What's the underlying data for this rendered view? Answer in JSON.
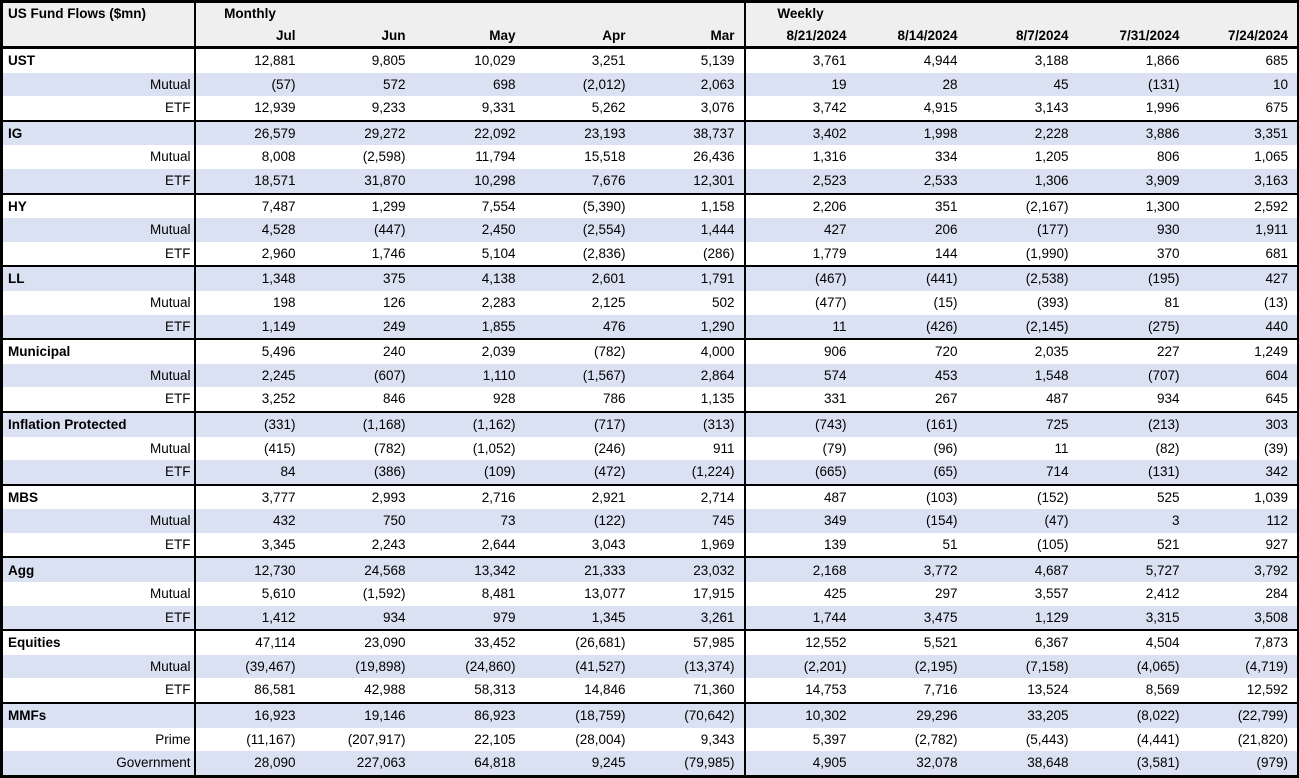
{
  "title": "US Fund Flows ($mn)",
  "colors": {
    "band": "#d9e1f2",
    "header_bg": "#efefef",
    "border": "#000000",
    "text": "#000000"
  },
  "sections": [
    {
      "label": "Monthly",
      "columns": [
        "Jul",
        "Jun",
        "May",
        "Apr",
        "Mar"
      ]
    },
    {
      "label": "Weekly",
      "columns": [
        "8/21/2024",
        "8/14/2024",
        "8/7/2024",
        "7/31/2024",
        "7/24/2024"
      ]
    }
  ],
  "groups": [
    {
      "rows": [
        {
          "label": "UST",
          "type": "category",
          "monthly": [
            "12,881",
            "9,805",
            "10,029",
            "3,251",
            "5,139"
          ],
          "weekly": [
            "3,761",
            "4,944",
            "3,188",
            "1,866",
            "685"
          ]
        },
        {
          "label": "Mutual",
          "type": "sub",
          "monthly": [
            "(57)",
            "572",
            "698",
            "(2,012)",
            "2,063"
          ],
          "weekly": [
            "19",
            "28",
            "45",
            "(131)",
            "10"
          ]
        },
        {
          "label": "ETF",
          "type": "sub",
          "monthly": [
            "12,939",
            "9,233",
            "9,331",
            "5,262",
            "3,076"
          ],
          "weekly": [
            "3,742",
            "4,915",
            "3,143",
            "1,996",
            "675"
          ]
        }
      ]
    },
    {
      "rows": [
        {
          "label": "IG",
          "type": "category",
          "monthly": [
            "26,579",
            "29,272",
            "22,092",
            "23,193",
            "38,737"
          ],
          "weekly": [
            "3,402",
            "1,998",
            "2,228",
            "3,886",
            "3,351"
          ]
        },
        {
          "label": "Mutual",
          "type": "sub",
          "monthly": [
            "8,008",
            "(2,598)",
            "11,794",
            "15,518",
            "26,436"
          ],
          "weekly": [
            "1,316",
            "334",
            "1,205",
            "806",
            "1,065"
          ]
        },
        {
          "label": "ETF",
          "type": "sub",
          "monthly": [
            "18,571",
            "31,870",
            "10,298",
            "7,676",
            "12,301"
          ],
          "weekly": [
            "2,523",
            "2,533",
            "1,306",
            "3,909",
            "3,163"
          ]
        }
      ]
    },
    {
      "rows": [
        {
          "label": "HY",
          "type": "category",
          "monthly": [
            "7,487",
            "1,299",
            "7,554",
            "(5,390)",
            "1,158"
          ],
          "weekly": [
            "2,206",
            "351",
            "(2,167)",
            "1,300",
            "2,592"
          ]
        },
        {
          "label": "Mutual",
          "type": "sub",
          "monthly": [
            "4,528",
            "(447)",
            "2,450",
            "(2,554)",
            "1,444"
          ],
          "weekly": [
            "427",
            "206",
            "(177)",
            "930",
            "1,911"
          ]
        },
        {
          "label": "ETF",
          "type": "sub",
          "monthly": [
            "2,960",
            "1,746",
            "5,104",
            "(2,836)",
            "(286)"
          ],
          "weekly": [
            "1,779",
            "144",
            "(1,990)",
            "370",
            "681"
          ]
        }
      ]
    },
    {
      "rows": [
        {
          "label": "LL",
          "type": "category",
          "monthly": [
            "1,348",
            "375",
            "4,138",
            "2,601",
            "1,791"
          ],
          "weekly": [
            "(467)",
            "(441)",
            "(2,538)",
            "(195)",
            "427"
          ]
        },
        {
          "label": "Mutual",
          "type": "sub",
          "monthly": [
            "198",
            "126",
            "2,283",
            "2,125",
            "502"
          ],
          "weekly": [
            "(477)",
            "(15)",
            "(393)",
            "81",
            "(13)"
          ]
        },
        {
          "label": "ETF",
          "type": "sub",
          "monthly": [
            "1,149",
            "249",
            "1,855",
            "476",
            "1,290"
          ],
          "weekly": [
            "11",
            "(426)",
            "(2,145)",
            "(275)",
            "440"
          ]
        }
      ]
    },
    {
      "rows": [
        {
          "label": "Municipal",
          "type": "category",
          "monthly": [
            "5,496",
            "240",
            "2,039",
            "(782)",
            "4,000"
          ],
          "weekly": [
            "906",
            "720",
            "2,035",
            "227",
            "1,249"
          ]
        },
        {
          "label": "Mutual",
          "type": "sub",
          "monthly": [
            "2,245",
            "(607)",
            "1,110",
            "(1,567)",
            "2,864"
          ],
          "weekly": [
            "574",
            "453",
            "1,548",
            "(707)",
            "604"
          ]
        },
        {
          "label": "ETF",
          "type": "sub",
          "monthly": [
            "3,252",
            "846",
            "928",
            "786",
            "1,135"
          ],
          "weekly": [
            "331",
            "267",
            "487",
            "934",
            "645"
          ]
        }
      ]
    },
    {
      "rows": [
        {
          "label": "Inflation Protected",
          "type": "category",
          "monthly": [
            "(331)",
            "(1,168)",
            "(1,162)",
            "(717)",
            "(313)"
          ],
          "weekly": [
            "(743)",
            "(161)",
            "725",
            "(213)",
            "303"
          ]
        },
        {
          "label": "Mutual",
          "type": "sub",
          "monthly": [
            "(415)",
            "(782)",
            "(1,052)",
            "(246)",
            "911"
          ],
          "weekly": [
            "(79)",
            "(96)",
            "11",
            "(82)",
            "(39)"
          ]
        },
        {
          "label": "ETF",
          "type": "sub",
          "monthly": [
            "84",
            "(386)",
            "(109)",
            "(472)",
            "(1,224)"
          ],
          "weekly": [
            "(665)",
            "(65)",
            "714",
            "(131)",
            "342"
          ]
        }
      ]
    },
    {
      "rows": [
        {
          "label": "MBS",
          "type": "category",
          "monthly": [
            "3,777",
            "2,993",
            "2,716",
            "2,921",
            "2,714"
          ],
          "weekly": [
            "487",
            "(103)",
            "(152)",
            "525",
            "1,039"
          ]
        },
        {
          "label": "Mutual",
          "type": "sub",
          "monthly": [
            "432",
            "750",
            "73",
            "(122)",
            "745"
          ],
          "weekly": [
            "349",
            "(154)",
            "(47)",
            "3",
            "112"
          ]
        },
        {
          "label": "ETF",
          "type": "sub",
          "monthly": [
            "3,345",
            "2,243",
            "2,644",
            "3,043",
            "1,969"
          ],
          "weekly": [
            "139",
            "51",
            "(105)",
            "521",
            "927"
          ]
        }
      ]
    },
    {
      "rows": [
        {
          "label": "Agg",
          "type": "category",
          "monthly": [
            "12,730",
            "24,568",
            "13,342",
            "21,333",
            "23,032"
          ],
          "weekly": [
            "2,168",
            "3,772",
            "4,687",
            "5,727",
            "3,792"
          ]
        },
        {
          "label": "Mutual",
          "type": "sub",
          "monthly": [
            "5,610",
            "(1,592)",
            "8,481",
            "13,077",
            "17,915"
          ],
          "weekly": [
            "425",
            "297",
            "3,557",
            "2,412",
            "284"
          ]
        },
        {
          "label": "ETF",
          "type": "sub",
          "monthly": [
            "1,412",
            "934",
            "979",
            "1,345",
            "3,261"
          ],
          "weekly": [
            "1,744",
            "3,475",
            "1,129",
            "3,315",
            "3,508"
          ]
        }
      ]
    },
    {
      "rows": [
        {
          "label": "Equities",
          "type": "category",
          "monthly": [
            "47,114",
            "23,090",
            "33,452",
            "(26,681)",
            "57,985"
          ],
          "weekly": [
            "12,552",
            "5,521",
            "6,367",
            "4,504",
            "7,873"
          ]
        },
        {
          "label": "Mutual",
          "type": "sub",
          "monthly": [
            "(39,467)",
            "(19,898)",
            "(24,860)",
            "(41,527)",
            "(13,374)"
          ],
          "weekly": [
            "(2,201)",
            "(2,195)",
            "(7,158)",
            "(4,065)",
            "(4,719)"
          ]
        },
        {
          "label": "ETF",
          "type": "sub",
          "monthly": [
            "86,581",
            "42,988",
            "58,313",
            "14,846",
            "71,360"
          ],
          "weekly": [
            "14,753",
            "7,716",
            "13,524",
            "8,569",
            "12,592"
          ]
        }
      ]
    },
    {
      "rows": [
        {
          "label": "MMFs",
          "type": "category",
          "monthly": [
            "16,923",
            "19,146",
            "86,923",
            "(18,759)",
            "(70,642)"
          ],
          "weekly": [
            "10,302",
            "29,296",
            "33,205",
            "(8,022)",
            "(22,799)"
          ]
        },
        {
          "label": "Prime",
          "type": "sub",
          "monthly": [
            "(11,167)",
            "(207,917)",
            "22,105",
            "(28,004)",
            "9,343"
          ],
          "weekly": [
            "5,397",
            "(2,782)",
            "(5,443)",
            "(4,441)",
            "(21,820)"
          ]
        },
        {
          "label": "Government",
          "type": "sub",
          "monthly": [
            "28,090",
            "227,063",
            "64,818",
            "9,245",
            "(79,985)"
          ],
          "weekly": [
            "4,905",
            "32,078",
            "38,648",
            "(3,581)",
            "(979)"
          ]
        }
      ]
    }
  ]
}
